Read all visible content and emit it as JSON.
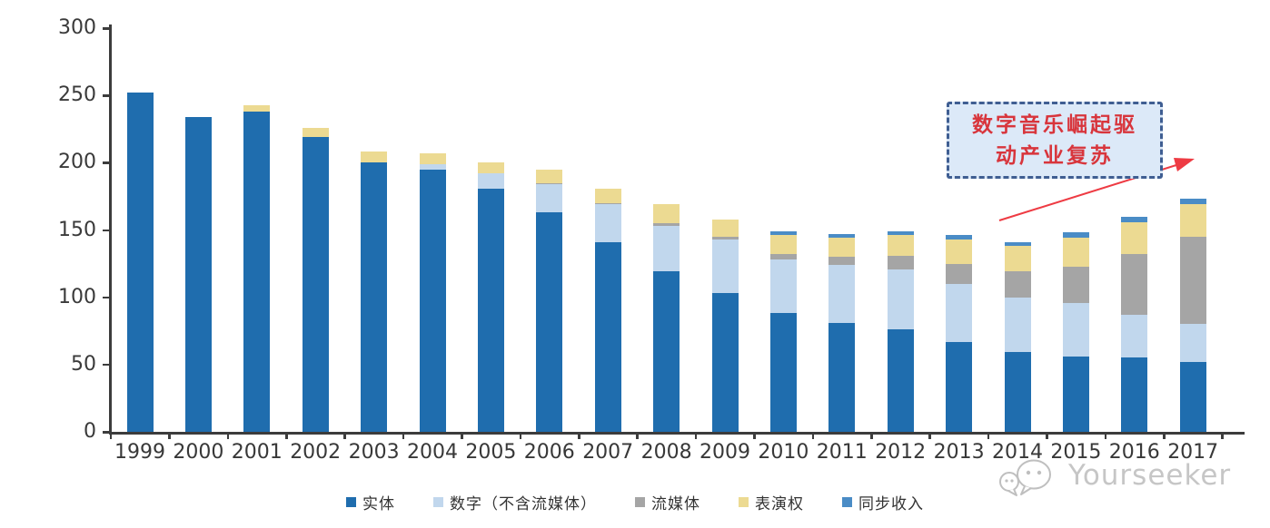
{
  "watermark": {
    "brand": "Yourseeker"
  },
  "chart_data": {
    "type": "bar",
    "stacked": true,
    "title": "",
    "xlabel": "",
    "ylabel": "",
    "grid": false,
    "legend_position": "bottom",
    "ylim": [
      0,
      300
    ],
    "yticks": [
      0,
      50,
      100,
      150,
      200,
      250,
      300
    ],
    "categories": [
      "1999",
      "2000",
      "2001",
      "2002",
      "2003",
      "2004",
      "2005",
      "2006",
      "2007",
      "2008",
      "2009",
      "2010",
      "2011",
      "2012",
      "2013",
      "2014",
      "2015",
      "2016",
      "2017"
    ],
    "series": [
      {
        "name": "实体",
        "color": "#1f6dae",
        "values": [
          252,
          234,
          238,
          219,
          200,
          195,
          181,
          163,
          141,
          119,
          103,
          88,
          81,
          76,
          67,
          59,
          56,
          55,
          52
        ]
      },
      {
        "name": "数字（不含流媒体）",
        "color": "#c1d7ed",
        "values": [
          0,
          0,
          0,
          0,
          0,
          4,
          11,
          21,
          28,
          34,
          40,
          40,
          43,
          45,
          43,
          41,
          40,
          32,
          28
        ]
      },
      {
        "name": "流媒体",
        "color": "#a5a5a5",
        "values": [
          0,
          0,
          0,
          0,
          0,
          0,
          0,
          1,
          1,
          2,
          2,
          4,
          6,
          10,
          15,
          19,
          27,
          45,
          65
        ]
      },
      {
        "name": "表演权",
        "color": "#ecda92",
        "values": [
          0,
          0,
          5,
          7,
          8,
          8,
          8,
          10,
          11,
          14,
          13,
          14,
          14,
          15,
          18,
          19,
          21,
          24,
          24
        ]
      },
      {
        "name": "同步收入",
        "color": "#4a8cc6",
        "values": [
          0,
          0,
          0,
          0,
          0,
          0,
          0,
          0,
          0,
          0,
          0,
          3,
          3,
          3,
          3,
          3,
          4,
          4,
          4
        ]
      }
    ],
    "totals": [
      252,
      234,
      243,
      226,
      208,
      207,
      200,
      195,
      181,
      169,
      158,
      149,
      147,
      149,
      146,
      141,
      148,
      160,
      173
    ],
    "annotation": {
      "line1": "数字音乐崛起驱",
      "line2": "动产业复苏"
    }
  }
}
